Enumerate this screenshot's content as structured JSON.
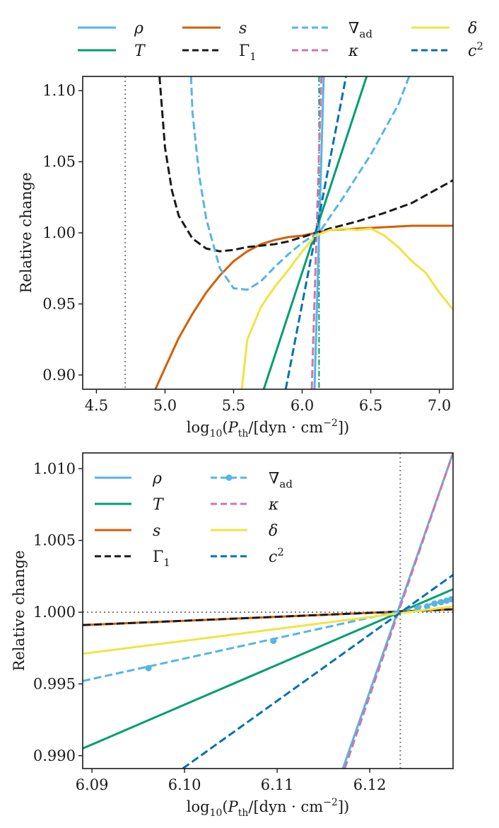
{
  "colors": {
    "rho": "#56b4e9",
    "T": "#009e73",
    "s": "#d55e00",
    "Gamma1": "#1a1a1a",
    "nabla_ad": "#56b4e9",
    "kappa": "#cc79a7",
    "delta": "#f0e442",
    "c2": "#0072b2",
    "guide": "#808080"
  },
  "legend_top": [
    {
      "key": "rho",
      "label": "ρ",
      "style": "solid"
    },
    {
      "key": "s",
      "label": "s",
      "style": "solid"
    },
    {
      "key": "nabla_ad",
      "label": "∇ad",
      "style": "dashed"
    },
    {
      "key": "delta",
      "label": "δ",
      "style": "solid"
    },
    {
      "key": "T",
      "label": "T",
      "style": "solid"
    },
    {
      "key": "Gamma1",
      "label": "Γ1",
      "style": "dashed"
    },
    {
      "key": "kappa",
      "label": "κ",
      "style": "dashed"
    },
    {
      "key": "c2",
      "label": "c²",
      "style": "dashed"
    }
  ],
  "legend_bottom": [
    {
      "key": "rho",
      "label": "ρ",
      "style": "solid"
    },
    {
      "key": "T",
      "label": "T",
      "style": "solid"
    },
    {
      "key": "s",
      "label": "s",
      "style": "solid"
    },
    {
      "key": "Gamma1",
      "label": "Γ1",
      "style": "dashed"
    },
    {
      "key": "nabla_ad",
      "label": "∇ad",
      "style": "dashed-marker"
    },
    {
      "key": "kappa",
      "label": "κ",
      "style": "dashed"
    },
    {
      "key": "delta",
      "label": "δ",
      "style": "solid"
    },
    {
      "key": "c2",
      "label": "c²",
      "style": "dashed"
    }
  ],
  "chart_data": [
    {
      "type": "line",
      "panel": "top",
      "xlabel": "log10(Pth/[dyn · cm−2])",
      "ylabel": "Relative change",
      "xlim": [
        4.4,
        7.1
      ],
      "ylim": [
        0.89,
        1.11
      ],
      "xticks": [
        {
          "v": 4.5,
          "label": "4.5"
        },
        {
          "v": 5.0,
          "label": "5.0"
        },
        {
          "v": 5.5,
          "label": "5.5"
        },
        {
          "v": 6.0,
          "label": "6.0"
        },
        {
          "v": 6.5,
          "label": "6.5"
        },
        {
          "v": 7.0,
          "label": "7.0"
        }
      ],
      "yticks": [
        {
          "v": 0.9,
          "label": "0.90"
        },
        {
          "v": 0.95,
          "label": "0.95"
        },
        {
          "v": 1.0,
          "label": "1.00"
        },
        {
          "v": 1.05,
          "label": "1.05"
        },
        {
          "v": 1.1,
          "label": "1.10"
        }
      ],
      "vlines": [
        {
          "x": 4.71,
          "style": "dotted",
          "key": "guide"
        },
        {
          "x": 6.123,
          "style": "dashdot",
          "key": "T"
        }
      ],
      "hlines": [],
      "series": [
        {
          "name": "ρ",
          "key": "rho",
          "style": "solid",
          "x": [
            6.09,
            6.157
          ],
          "y": [
            0.89,
            1.11
          ]
        },
        {
          "name": "T",
          "key": "T",
          "style": "solid",
          "x": [
            5.72,
            6.47
          ],
          "y": [
            0.89,
            1.11
          ]
        },
        {
          "name": "s",
          "key": "s",
          "style": "solid",
          "x": [
            4.93,
            5.0,
            5.1,
            5.2,
            5.3,
            5.4,
            5.5,
            5.6,
            5.7,
            5.8,
            5.9,
            6.0,
            6.1,
            6.2,
            6.4,
            6.6,
            6.8,
            7.1
          ],
          "y": [
            0.89,
            0.905,
            0.926,
            0.943,
            0.958,
            0.97,
            0.98,
            0.987,
            0.992,
            0.995,
            0.997,
            0.998,
            1.0,
            1.002,
            1.003,
            1.004,
            1.005,
            1.005
          ]
        },
        {
          "name": "Γ1",
          "key": "Gamma1",
          "style": "dashed",
          "x": [
            4.96,
            5.0,
            5.05,
            5.1,
            5.2,
            5.3,
            5.4,
            5.5,
            5.6,
            5.7,
            5.8,
            5.9,
            6.0,
            6.1,
            6.2,
            6.4,
            6.6,
            6.8,
            7.1
          ],
          "y": [
            1.11,
            1.06,
            1.03,
            1.012,
            0.996,
            0.989,
            0.987,
            0.988,
            0.99,
            0.991,
            0.992,
            0.994,
            0.997,
            1.0,
            1.003,
            1.008,
            1.014,
            1.021,
            1.037
          ]
        },
        {
          "name": "∇ad",
          "key": "nabla_ad",
          "style": "dashed",
          "x": [
            5.19,
            5.2,
            5.25,
            5.3,
            5.4,
            5.5,
            5.6,
            5.7,
            5.8,
            5.9,
            6.0,
            6.1,
            6.123,
            6.3,
            6.5,
            6.7,
            6.78
          ],
          "y": [
            1.11,
            1.085,
            1.04,
            1.01,
            0.975,
            0.961,
            0.96,
            0.966,
            0.976,
            0.985,
            0.993,
            0.999,
            1.0,
            1.025,
            1.055,
            1.09,
            1.11
          ]
        },
        {
          "name": "κ",
          "key": "kappa",
          "style": "dashed",
          "x": [
            6.07,
            6.14
          ],
          "y": [
            0.89,
            1.11
          ]
        },
        {
          "name": "δ",
          "key": "delta",
          "style": "solid",
          "x": [
            5.56,
            5.6,
            5.7,
            5.8,
            5.9,
            6.0,
            6.1,
            6.2,
            6.3,
            6.4,
            6.5,
            6.6,
            6.7,
            6.8,
            6.9,
            7.0,
            7.1
          ],
          "y": [
            0.89,
            0.925,
            0.948,
            0.962,
            0.974,
            0.987,
            0.998,
            1.002,
            1.003,
            1.002,
            1.003,
            0.998,
            0.99,
            0.98,
            0.972,
            0.958,
            0.946
          ]
        },
        {
          "name": "c²",
          "key": "c2",
          "style": "dashed",
          "x": [
            5.88,
            6.32
          ],
          "y": [
            0.89,
            1.11
          ]
        }
      ]
    },
    {
      "type": "line",
      "panel": "bottom",
      "xlabel": "log10(Pth/[dyn · cm−2])",
      "ylabel": "Relative change",
      "xlim": [
        6.089,
        6.129
      ],
      "ylim": [
        0.9891,
        1.0111
      ],
      "xticks": [
        {
          "v": 6.09,
          "label": "6.09"
        },
        {
          "v": 6.1,
          "label": "6.10"
        },
        {
          "v": 6.11,
          "label": "6.11"
        },
        {
          "v": 6.12,
          "label": "6.12"
        }
      ],
      "yticks": [
        {
          "v": 0.99,
          "label": "0.990"
        },
        {
          "v": 0.995,
          "label": "0.995"
        },
        {
          "v": 1.0,
          "label": "1.000"
        },
        {
          "v": 1.005,
          "label": "1.005"
        },
        {
          "v": 1.01,
          "label": "1.010"
        }
      ],
      "vlines": [
        {
          "x": 6.1233,
          "style": "dotted",
          "key": "guide"
        }
      ],
      "hlines": [
        {
          "y": 1.0,
          "style": "dotted",
          "key": "guide"
        }
      ],
      "series": [
        {
          "name": "ρ",
          "key": "rho",
          "style": "solid",
          "x": [
            6.1171,
            6.129
          ],
          "y": [
            0.9891,
            1.0111
          ]
        },
        {
          "name": "T",
          "key": "T",
          "style": "solid",
          "x": [
            6.089,
            6.129
          ],
          "y": [
            0.9905,
            1.0016
          ]
        },
        {
          "name": "s",
          "key": "s",
          "style": "solid",
          "x": [
            6.089,
            6.129
          ],
          "y": [
            0.9991,
            1.0002
          ]
        },
        {
          "name": "Γ1",
          "key": "Gamma1",
          "style": "dashed",
          "x": [
            6.089,
            6.129
          ],
          "y": [
            0.9991,
            1.0002
          ]
        },
        {
          "name": "∇ad",
          "key": "nabla_ad",
          "style": "dashed",
          "x": [
            6.089,
            6.129
          ],
          "y": [
            0.9952,
            1.0009
          ],
          "markers": [
            {
              "x": 6.0961,
              "y": 0.9961
            },
            {
              "x": 6.1096,
              "y": 0.998
            },
            {
              "x": 6.1252,
              "y": 1.0003
            },
            {
              "x": 6.1262,
              "y": 1.0004
            },
            {
              "x": 6.127,
              "y": 1.0006
            },
            {
              "x": 6.1277,
              "y": 1.0007
            },
            {
              "x": 6.1283,
              "y": 1.0008
            },
            {
              "x": 6.1288,
              "y": 1.0009
            }
          ]
        },
        {
          "name": "κ",
          "key": "kappa",
          "style": "dashed",
          "x": [
            6.1173,
            6.129
          ],
          "y": [
            0.9891,
            1.0111
          ]
        },
        {
          "name": "δ",
          "key": "delta",
          "style": "solid",
          "x": [
            6.089,
            6.129
          ],
          "y": [
            0.9971,
            1.0004
          ]
        },
        {
          "name": "c²",
          "key": "c2",
          "style": "dashed",
          "x": [
            6.0998,
            6.129
          ],
          "y": [
            0.9891,
            1.0026
          ]
        }
      ]
    }
  ]
}
